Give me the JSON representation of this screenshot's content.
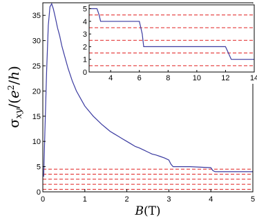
{
  "chart_data": [
    {
      "id": "main",
      "type": "line",
      "xlabel": "B",
      "xunit": "(T)",
      "ylabel": "σxy/(e²/h)",
      "xlim": [
        0,
        5
      ],
      "ylim": [
        0,
        37.5
      ],
      "xticks": [
        0,
        1,
        2,
        3,
        4,
        5
      ],
      "yticks": [
        0,
        5,
        10,
        15,
        20,
        25,
        30,
        35
      ],
      "grid": false,
      "hlines": [
        0.5,
        1.5,
        2.5,
        3.5,
        4.5
      ],
      "series": [
        {
          "x": [
            0.02,
            0.05,
            0.09,
            0.13,
            0.17,
            0.21,
            0.25,
            0.3,
            0.35,
            0.4,
            0.45,
            0.5,
            0.6,
            0.7,
            0.8,
            0.9,
            1.0,
            1.1,
            1.2,
            1.3,
            1.4,
            1.5,
            1.6,
            1.7,
            1.8,
            1.9,
            2.0,
            2.1,
            2.2,
            2.3,
            2.4,
            2.5,
            2.6,
            2.7,
            2.8,
            2.9,
            3.0,
            3.05,
            3.1,
            3.5,
            4.0,
            4.05,
            4.1,
            5.0
          ],
          "y": [
            3.0,
            12.0,
            24.0,
            33.0,
            36.7,
            37.3,
            36.3,
            34.5,
            32.5,
            31.0,
            29.0,
            27.5,
            24.5,
            22.0,
            20.0,
            18.5,
            17.0,
            16.0,
            15.0,
            14.2,
            13.4,
            12.7,
            12.0,
            11.5,
            11.0,
            10.5,
            10.0,
            9.5,
            9.0,
            8.7,
            8.3,
            7.9,
            7.5,
            7.3,
            7.0,
            6.7,
            6.3,
            5.5,
            5.0,
            5.0,
            4.8,
            4.2,
            4.0,
            4.0
          ]
        }
      ]
    },
    {
      "id": "inset",
      "type": "line",
      "xlim": [
        2.5,
        14
      ],
      "ylim": [
        0,
        5.3
      ],
      "xticks": [
        4,
        6,
        8,
        10,
        12,
        14
      ],
      "xticklabels": [
        "4",
        "6",
        "8",
        "10",
        "12",
        "14"
      ],
      "yticks": [
        0,
        1,
        2,
        3,
        4,
        5
      ],
      "yticklabels": [
        "0",
        "1",
        "2",
        "3",
        "4",
        "5"
      ],
      "grid": false,
      "hlines": [
        0.5,
        1.5,
        2.5,
        3.5,
        4.5
      ],
      "series": [
        {
          "x": [
            2.5,
            3.05,
            3.2,
            3.3,
            6.0,
            6.2,
            6.3,
            12.0,
            12.2,
            12.4,
            14.0
          ],
          "y": [
            5.0,
            5.0,
            4.5,
            4.0,
            4.0,
            3.0,
            2.0,
            2.0,
            1.5,
            1.0,
            1.0
          ]
        }
      ]
    }
  ]
}
